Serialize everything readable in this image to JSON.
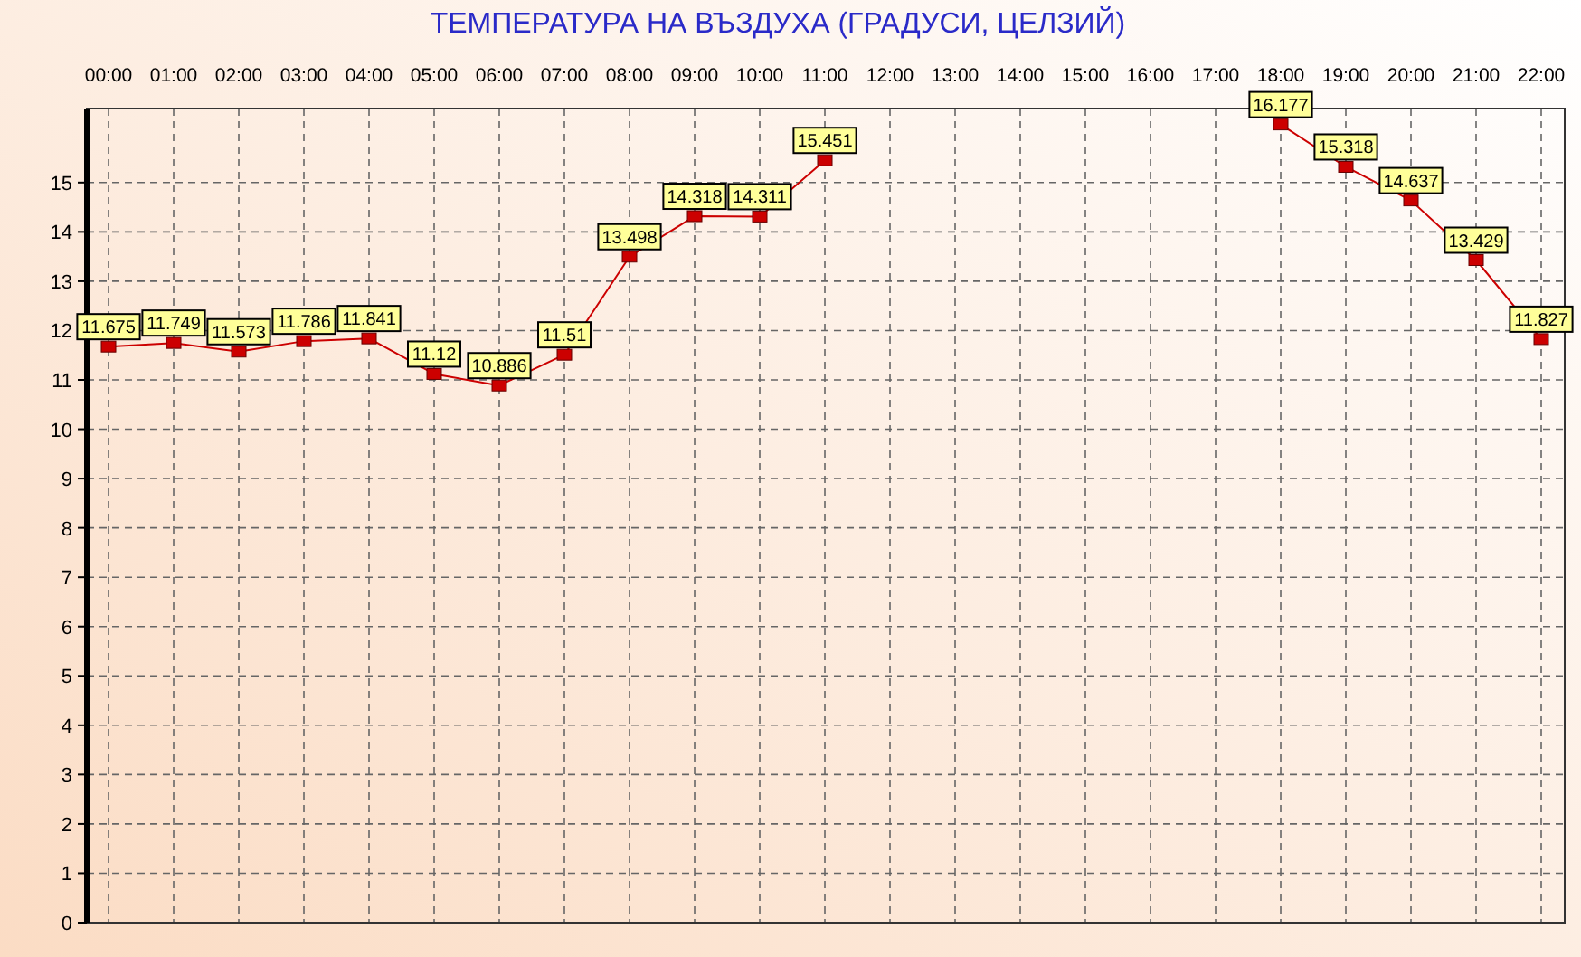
{
  "chart_data": {
    "type": "line",
    "title": "ТЕМПЕРАТУРА НА ВЪЗДУХА  (ГРАДУСИ, ЦЕЛЗИЙ)",
    "categories": [
      "00:00",
      "01:00",
      "02:00",
      "03:00",
      "04:00",
      "05:00",
      "06:00",
      "07:00",
      "08:00",
      "09:00",
      "10:00",
      "11:00",
      "12:00",
      "13:00",
      "14:00",
      "15:00",
      "16:00",
      "17:00",
      "18:00",
      "19:00",
      "20:00",
      "21:00",
      "22:00"
    ],
    "series": [
      {
        "color": "#cc0000",
        "values": [
          11.675,
          11.749,
          11.573,
          11.786,
          11.841,
          11.12,
          10.886,
          11.51,
          13.498,
          14.318,
          14.311,
          15.451,
          null,
          null,
          null,
          null,
          null,
          null,
          16.177,
          15.318,
          14.637,
          13.429,
          11.827
        ]
      }
    ],
    "ylim": [
      0,
      16.5
    ],
    "yticks": [
      0,
      1,
      2,
      3,
      4,
      5,
      6,
      7,
      8,
      9,
      10,
      11,
      12,
      13,
      14,
      15
    ],
    "grid": true,
    "marker": "square",
    "line_style": "solid",
    "data_labels": true
  }
}
